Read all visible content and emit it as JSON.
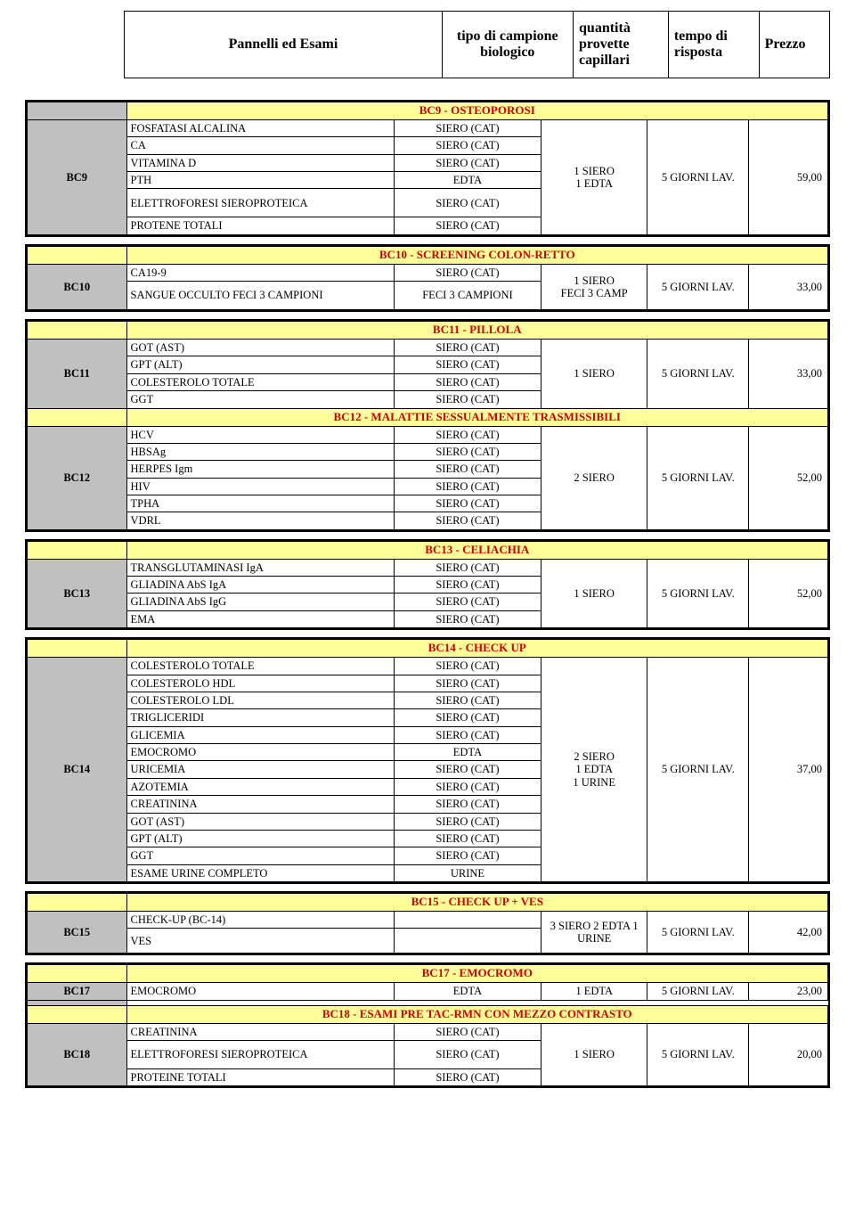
{
  "header": {
    "c0": "Pannelli ed Esami",
    "c1": "tipo di campione biologico",
    "c2": "quantità provette capillari",
    "c3": "tempo di risposta",
    "c4": "Prezzo"
  },
  "panels": {
    "bc9": {
      "code": "BC9",
      "title": "BC9 - OSTEOPOROSI",
      "rows": [
        {
          "exam": "FOSFATASI ALCALINA",
          "sample": "SIERO (CAT)"
        },
        {
          "exam": "CA",
          "sample": "SIERO (CAT)"
        },
        {
          "exam": "VITAMINA D",
          "sample": "SIERO (CAT)"
        },
        {
          "exam": "PTH",
          "sample": "EDTA"
        },
        {
          "exam": "ELETTROFORESI SIEROPROTEICA",
          "sample": "SIERO (CAT)"
        },
        {
          "exam": "PROTENE TOTALI",
          "sample": "SIERO (CAT)"
        }
      ],
      "qty": "1 SIERO\n1 EDTA",
      "time": "5 GIORNI LAV.",
      "price": "59,00"
    },
    "bc10": {
      "code": "BC10",
      "title": "BC10 - SCREENING COLON-RETTO",
      "rows": [
        {
          "exam": "CA19-9",
          "sample": "SIERO (CAT)"
        },
        {
          "exam": "SANGUE OCCULTO FECI 3 CAMPIONI",
          "sample": "FECI 3 CAMPIONI"
        }
      ],
      "qty": "1 SIERO\nFECI 3 CAMP",
      "time": "5 GIORNI LAV.",
      "price": "33,00"
    },
    "bc11": {
      "code": "BC11",
      "title": "BC11 - PILLOLA",
      "rows": [
        {
          "exam": "GOT  (AST)",
          "sample": "SIERO (CAT)"
        },
        {
          "exam": "GPT (ALT)",
          "sample": "SIERO (CAT)"
        },
        {
          "exam": "COLESTEROLO TOTALE",
          "sample": "SIERO (CAT)"
        },
        {
          "exam": "GGT",
          "sample": "SIERO (CAT)"
        }
      ],
      "qty": "1 SIERO",
      "time": "5 GIORNI LAV.",
      "price": "33,00"
    },
    "bc12": {
      "code": "BC12",
      "title": "BC12 - MALATTIE SESSUALMENTE TRASMISSIBILI",
      "rows": [
        {
          "exam": "HCV",
          "sample": "SIERO (CAT)"
        },
        {
          "exam": "HBSAg",
          "sample": "SIERO (CAT)"
        },
        {
          "exam": "HERPES Igm",
          "sample": "SIERO (CAT)"
        },
        {
          "exam": "HIV",
          "sample": "SIERO (CAT)"
        },
        {
          "exam": "TPHA",
          "sample": "SIERO (CAT)"
        },
        {
          "exam": "VDRL",
          "sample": "SIERO (CAT)"
        }
      ],
      "qty": "2 SIERO",
      "time": "5 GIORNI LAV.",
      "price": "52,00"
    },
    "bc13": {
      "code": "BC13",
      "title": "BC13 - CELIACHIA",
      "rows": [
        {
          "exam": "TRANSGLUTAMINASI IgA",
          "sample": "SIERO (CAT)"
        },
        {
          "exam": "GLIADINA AbS IgA",
          "sample": "SIERO (CAT)"
        },
        {
          "exam": "GLIADINA AbS IgG",
          "sample": "SIERO (CAT)"
        },
        {
          "exam": "EMA",
          "sample": "SIERO (CAT)"
        }
      ],
      "qty": "1 SIERO",
      "time": "5 GIORNI LAV.",
      "price": "52,00"
    },
    "bc14": {
      "code": "BC14",
      "title": "BC14 - CHECK UP",
      "rows": [
        {
          "exam": "COLESTEROLO TOTALE",
          "sample": "SIERO (CAT)"
        },
        {
          "exam": "COLESTEROLO HDL",
          "sample": "SIERO (CAT)"
        },
        {
          "exam": "COLESTEROLO LDL",
          "sample": "SIERO (CAT)"
        },
        {
          "exam": "TRIGLICERIDI",
          "sample": "SIERO (CAT)"
        },
        {
          "exam": "GLICEMIA",
          "sample": "SIERO (CAT)"
        },
        {
          "exam": "EMOCROMO",
          "sample": "EDTA"
        },
        {
          "exam": "URICEMIA",
          "sample": "SIERO (CAT)"
        },
        {
          "exam": "AZOTEMIA",
          "sample": "SIERO (CAT)"
        },
        {
          "exam": "CREATININA",
          "sample": "SIERO (CAT)"
        },
        {
          "exam": "GOT  (AST)",
          "sample": "SIERO (CAT)"
        },
        {
          "exam": "GPT (ALT)",
          "sample": "SIERO (CAT)"
        },
        {
          "exam": "GGT",
          "sample": "SIERO (CAT)"
        },
        {
          "exam": "ESAME URINE COMPLETO",
          "sample": "URINE"
        }
      ],
      "qty": "2 SIERO\n1 EDTA\n1 URINE",
      "time": "5 GIORNI LAV.",
      "price": "37,00"
    },
    "bc15": {
      "code": "BC15",
      "title": "BC15 - CHECK UP + VES",
      "rows": [
        {
          "exam": "CHECK-UP (BC-14)",
          "sample": ""
        },
        {
          "exam": "VES",
          "sample": ""
        }
      ],
      "qty": "3 SIERO 2 EDTA 1 URINE",
      "time": "5 GIORNI LAV.",
      "price": "42,00"
    },
    "bc17": {
      "code": "BC17",
      "title": "BC17 - EMOCROMO",
      "rows": [
        {
          "exam": "EMOCROMO",
          "sample": "EDTA"
        }
      ],
      "qty": "1 EDTA",
      "time": "5 GIORNI LAV.",
      "price": "23,00"
    },
    "bc18": {
      "code": "BC18",
      "title": "BC18 - ESAMI PRE TAC-RMN CON MEZZO CONTRASTO",
      "rows": [
        {
          "exam": "CREATININA",
          "sample": "SIERO (CAT)"
        },
        {
          "exam": "ELETTROFORESI SIEROPROTEICA",
          "sample": "SIERO (CAT)"
        },
        {
          "exam": "PROTEINE TOTALI",
          "sample": "SIERO (CAT)"
        }
      ],
      "qty": "1 SIERO",
      "time": "5 GIORNI LAV.",
      "price": "20,00"
    }
  },
  "style": {
    "title_bg": "#ffff99",
    "title_color": "#cc0000",
    "code_bg": "#c0c0c0",
    "border_color": "#000000",
    "font_family": "Times New Roman"
  }
}
